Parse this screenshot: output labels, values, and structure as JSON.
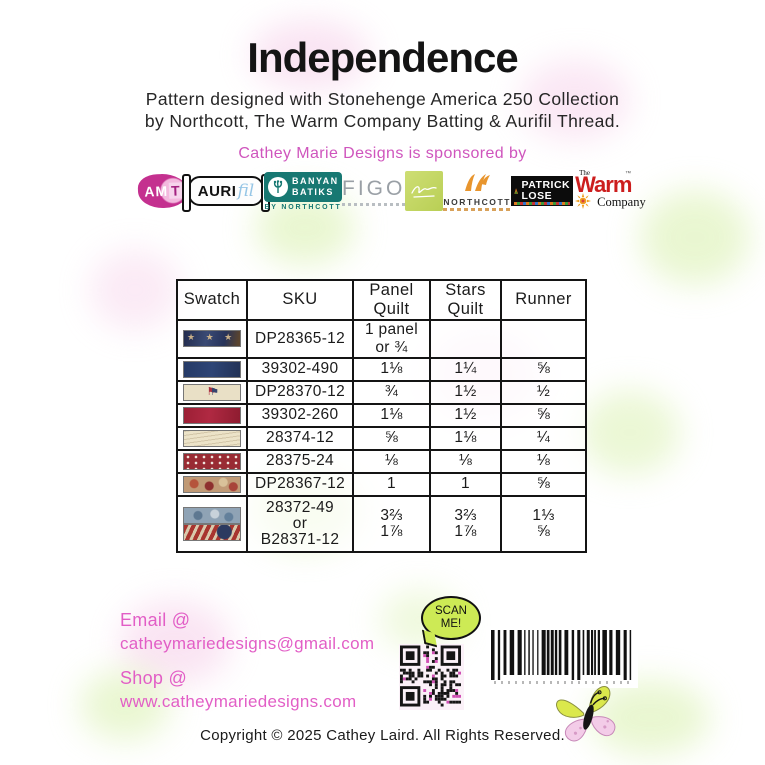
{
  "page": {
    "title": "Independence",
    "subtitle_line1": "Pattern designed with Stonehenge America 250 Collection",
    "subtitle_line2": "by Northcott, The Warm Company Batting & Aurifil Thread.",
    "sponsored_by": "Cathey Marie Designs is sponsored by",
    "copyright": "Copyright © 2025 Cathey Laird. All Rights Reserved."
  },
  "colors": {
    "accent_pink": "#cf55bd",
    "contact_pink": "#e25ec6",
    "bubble_green": "#cdea55",
    "banyan_teal": "#177872",
    "warm_red": "#cc1d1d",
    "northcott_orange": "#e8952e"
  },
  "sponsors": {
    "amt": {
      "am": "AM",
      "t": "T"
    },
    "aurifil": {
      "auri": "AURI",
      "fil": "fil"
    },
    "banyan": {
      "line1": "BANYAN",
      "line2": "BATIKS",
      "sub": "BY NORTHCOTT"
    },
    "figo": {
      "name": "FIGO"
    },
    "northcott": {
      "name": "NORTHCOTT"
    },
    "patrick_lose": {
      "line1": "PATRICK",
      "line2": "LOSE"
    },
    "warm_company": {
      "the": "The",
      "warm": "Warm",
      "company": "Company"
    }
  },
  "table": {
    "headers": [
      "Swatch",
      "SKU",
      "Panel Quilt",
      "Stars Quilt",
      "Runner"
    ],
    "rows": [
      {
        "sku": "DP28365-12",
        "panel_line1": "1 panel",
        "panel_line2": "or ¾",
        "stars": "",
        "runner": ""
      },
      {
        "sku": "39302-490",
        "panel": "1⅛",
        "stars": "1¼",
        "runner": "⅝"
      },
      {
        "sku": "DP28370-12",
        "panel": "¾",
        "stars": "1½",
        "runner": "½"
      },
      {
        "sku": "39302-260",
        "panel": "1⅛",
        "stars": "1½",
        "runner": "⅝"
      },
      {
        "sku": "28374-12",
        "panel": "⅝",
        "stars": "1⅛",
        "runner": "¼"
      },
      {
        "sku": "28375-24",
        "panel": "⅛",
        "stars": "⅛",
        "runner": "⅛"
      },
      {
        "sku": "DP28367-12",
        "panel": "1",
        "stars": "1",
        "runner": "⅝"
      },
      {
        "sku_line1": "28372-49",
        "sku_or": "or",
        "sku_line2": "B28371-12",
        "panel_line1": "3⅔",
        "panel_line2": "1⅞",
        "stars_line1": "3⅔",
        "stars_line2": "1⅞",
        "runner_line1": "1⅓",
        "runner_line2": "⅝"
      }
    ]
  },
  "contact": {
    "email_label": "Email @",
    "email": "catheymariedesigns@gmail.com",
    "shop_label": "Shop @",
    "shop": "www.catheymariedesigns.com"
  },
  "qr": {
    "label_line1": "SCAN",
    "label_line2": "ME!"
  }
}
